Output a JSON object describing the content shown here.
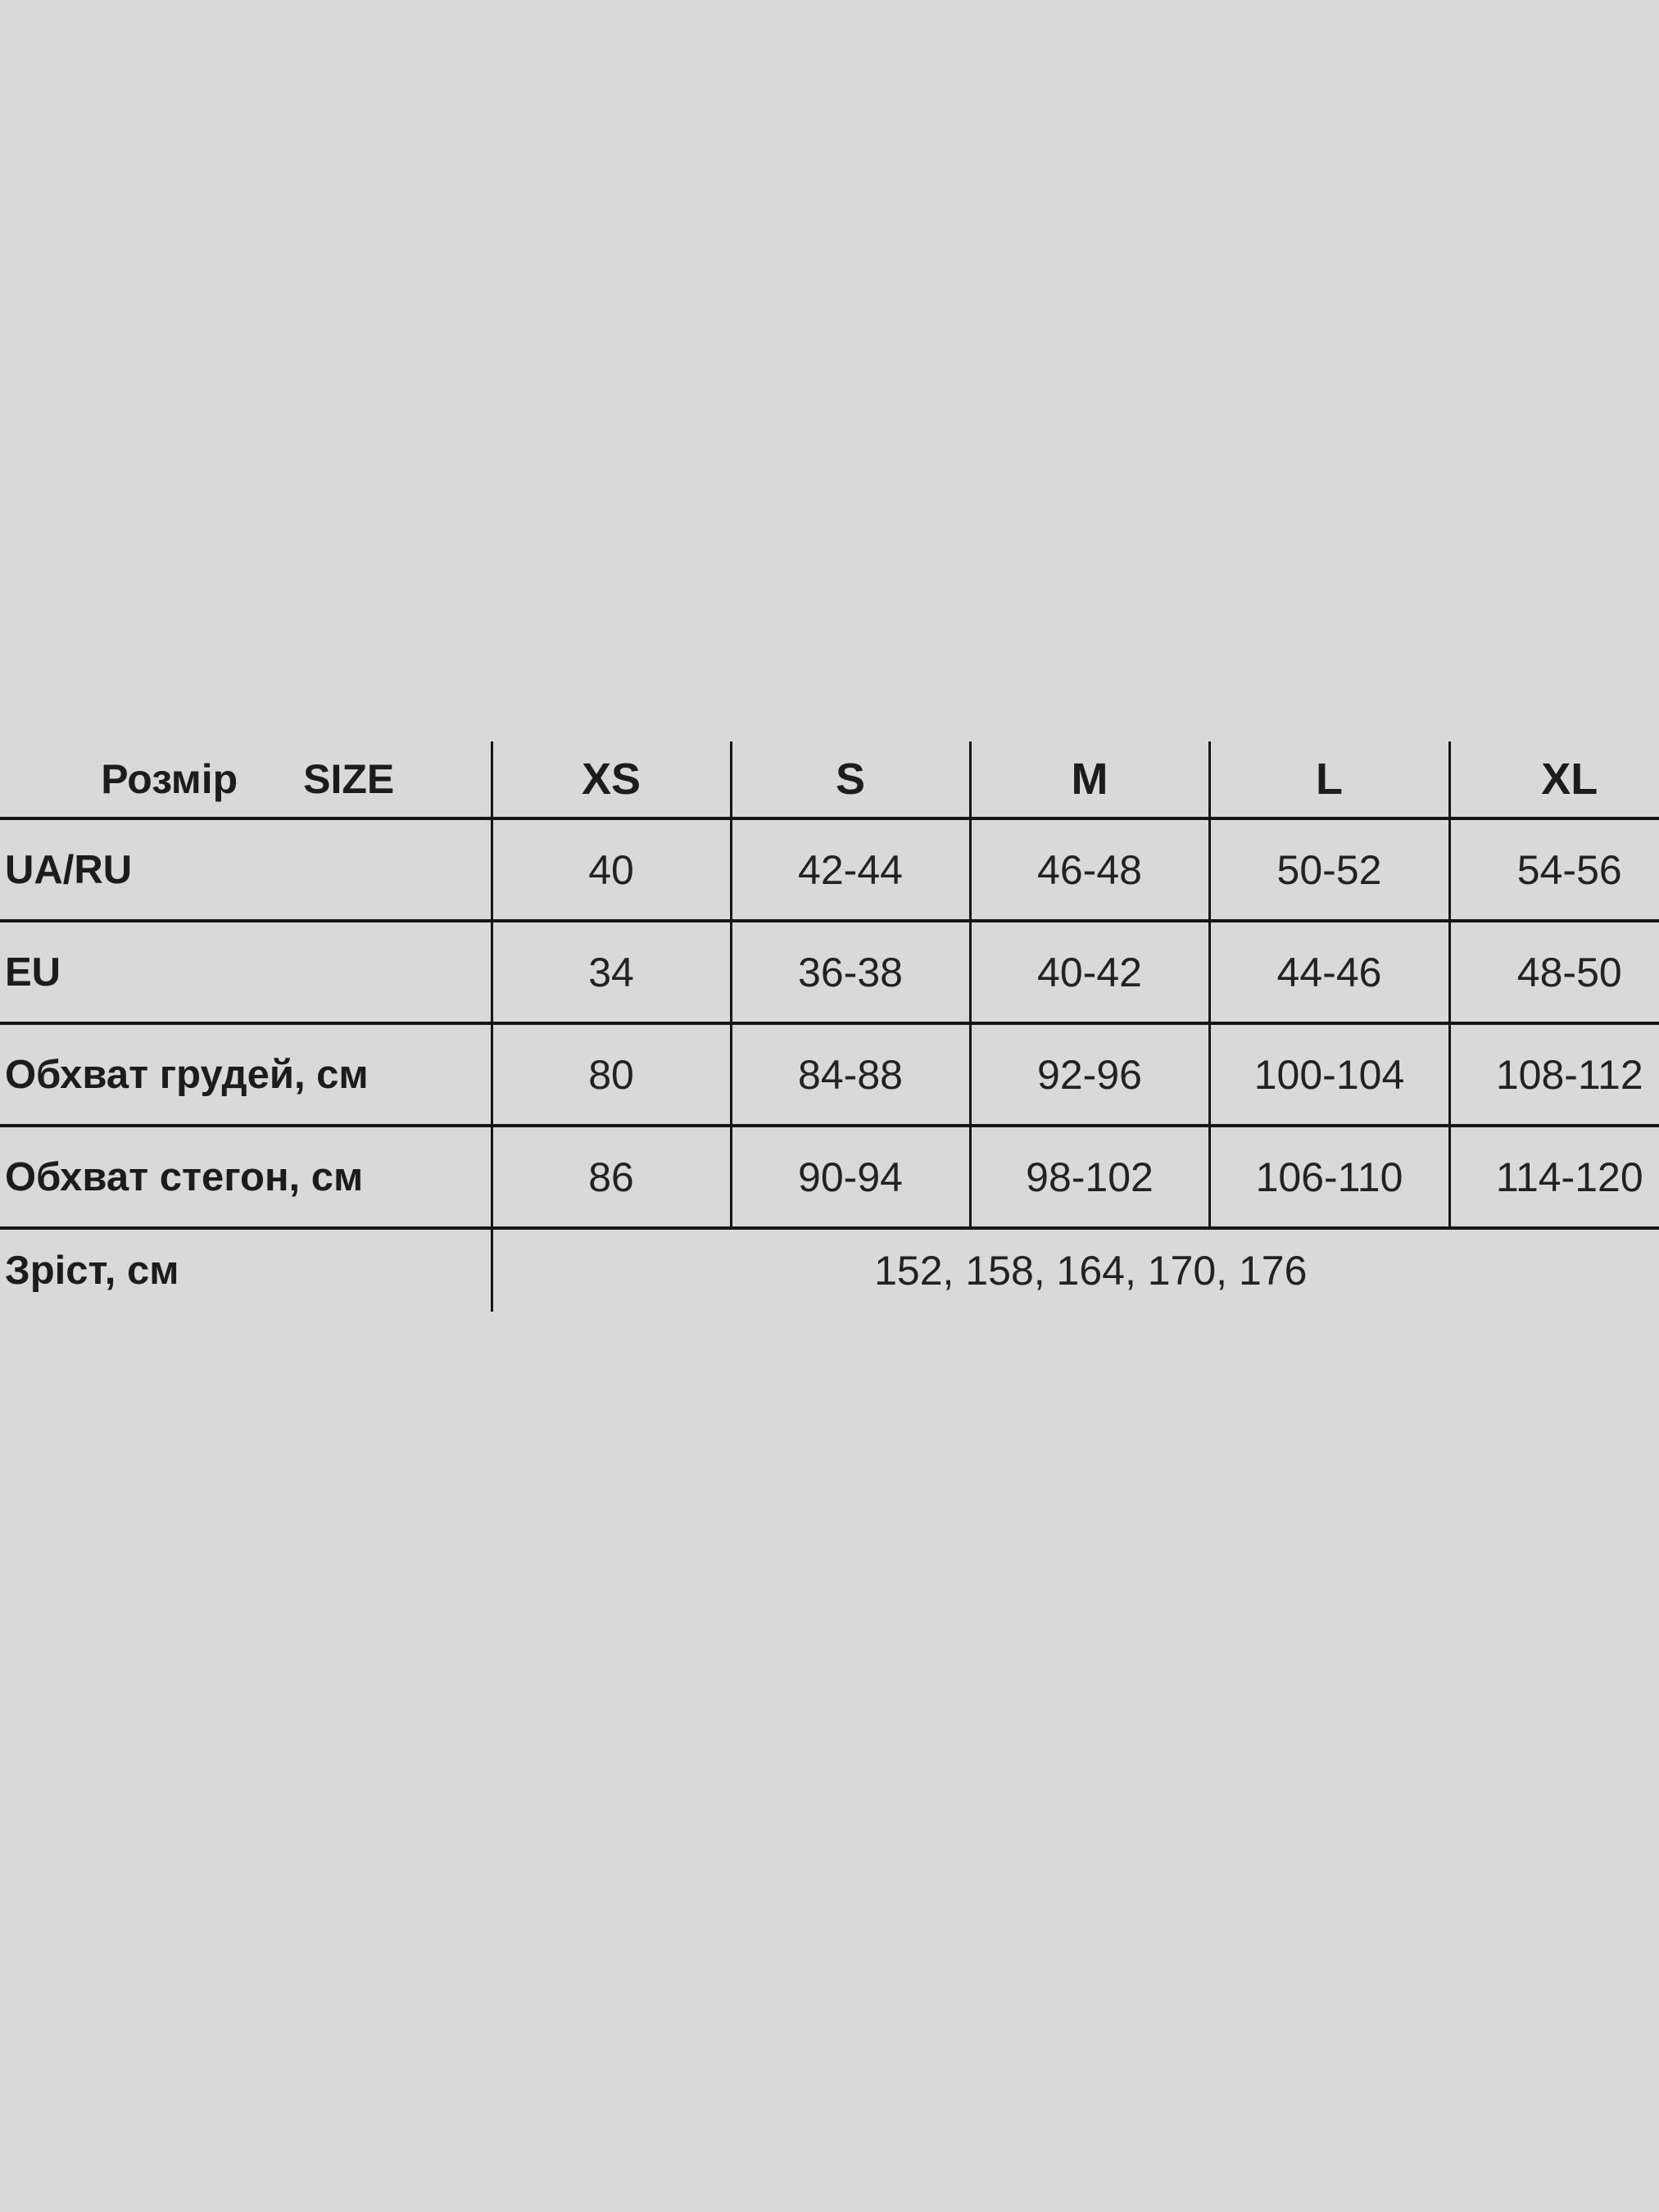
{
  "page": {
    "background_color": "#d9d9d9",
    "grid_line_color": "#161616",
    "text_color": "#1c1c1c"
  },
  "table": {
    "header": {
      "label_uk": "Розмір",
      "label_en": "SIZE",
      "sizes": [
        "XS",
        "S",
        "M",
        "L",
        "XL"
      ]
    },
    "rows": [
      {
        "label": "UA/RU",
        "values": [
          "40",
          "42-44",
          "46-48",
          "50-52",
          "54-56"
        ]
      },
      {
        "label": "EU",
        "values": [
          "34",
          "36-38",
          "40-42",
          "44-46",
          "48-50"
        ]
      },
      {
        "label": "Обхват грудей, см",
        "values": [
          "80",
          "84-88",
          "92-96",
          "100-104",
          "108-112"
        ]
      },
      {
        "label": "Обхват стегон, см",
        "values": [
          "86",
          "90-94",
          "98-102",
          "106-110",
          "114-120"
        ]
      }
    ],
    "footer": {
      "label": "Зріст, см",
      "value": "152, 158, 164, 170, 176"
    }
  }
}
